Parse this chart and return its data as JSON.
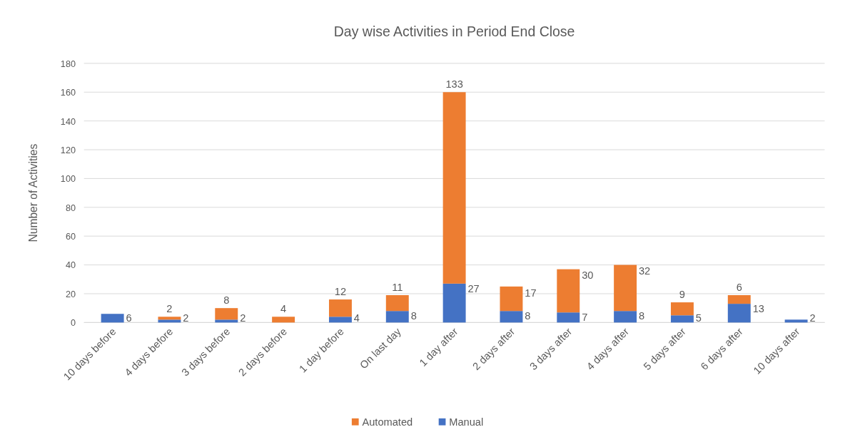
{
  "chart_data": {
    "type": "bar",
    "title": "Day wise Activities in Period End Close",
    "ylabel": "Number of Activities",
    "categories": [
      "10 days before",
      "4 days before",
      "3 days before",
      "2 days before",
      "1 day before",
      "On last day",
      "1 day after",
      "2 days after",
      "3 days after",
      "4 days after",
      "5 days after",
      "6 days after",
      "10 days after"
    ],
    "series": [
      {
        "name": "Manual",
        "color": "#4472c4",
        "values": [
          6,
          2,
          2,
          null,
          4,
          8,
          27,
          8,
          7,
          8,
          5,
          13,
          2
        ]
      },
      {
        "name": "Automated",
        "color": "#ed7d31",
        "values": [
          null,
          2,
          8,
          4,
          12,
          11,
          133,
          17,
          30,
          32,
          9,
          6,
          null
        ]
      }
    ],
    "stacked": true,
    "data_labels": true,
    "ylim": [
      0,
      180
    ],
    "yticks": [
      0,
      20,
      40,
      60,
      80,
      100,
      120,
      140,
      160,
      180
    ],
    "grid": "y",
    "legend": "bottom"
  }
}
